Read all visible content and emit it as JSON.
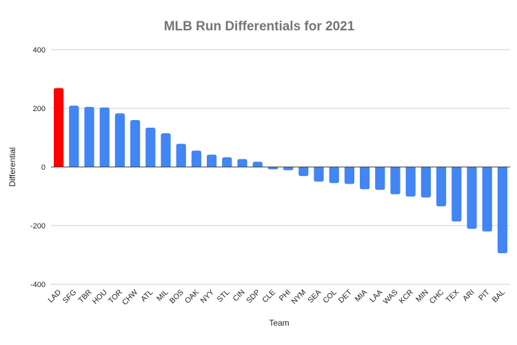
{
  "chart_data": {
    "type": "bar",
    "title": "MLB Run Differentials for 2021",
    "xlabel": "Team",
    "ylabel": "Differential",
    "ylim": [
      -400,
      400
    ],
    "yticks": [
      -400,
      -200,
      0,
      200,
      400
    ],
    "grid": true,
    "legend": "none",
    "colors": {
      "default": "#4285f4",
      "highlight": "#ff0000",
      "gridline": "#cccccc",
      "baseline": "#333333"
    },
    "highlight_category": "LAD",
    "categories": [
      "LAD",
      "SFG",
      "TBR",
      "HOU",
      "TOR",
      "CHW",
      "ATL",
      "MIL",
      "BOS",
      "OAK",
      "NYY",
      "STL",
      "CIN",
      "SDP",
      "CLE",
      "PHI",
      "NYM",
      "SEA",
      "COL",
      "DET",
      "MIA",
      "LAA",
      "WAS",
      "KCR",
      "MIN",
      "CHC",
      "TEX",
      "ARI",
      "PIT",
      "BAL"
    ],
    "values": [
      269,
      209,
      205,
      203,
      183,
      160,
      134,
      115,
      79,
      56,
      42,
      33,
      27,
      18,
      -8,
      -11,
      -31,
      -50,
      -55,
      -58,
      -76,
      -78,
      -93,
      -101,
      -104,
      -134,
      -186,
      -211,
      -220,
      -294
    ]
  }
}
